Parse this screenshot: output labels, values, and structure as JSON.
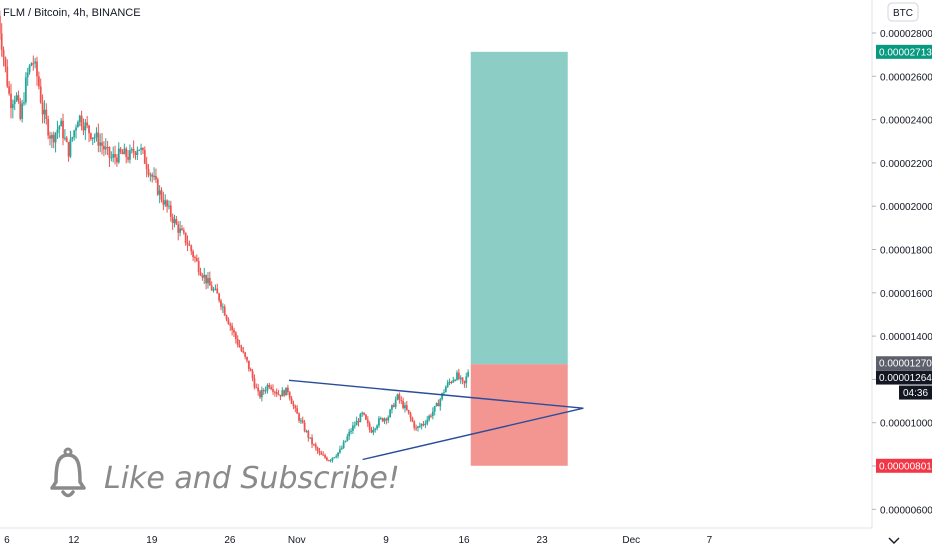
{
  "header": {
    "symbol_line": "FLM / Bitcoin, 4h, BINANCE",
    "currency": "BTC"
  },
  "overlay": {
    "call_to_action": "Like and Subscribe!",
    "icon": "bell-icon"
  },
  "colors": {
    "up": "#26a69a",
    "down": "#ef5350",
    "target_zone": "#80c8bf",
    "stop_zone": "#f28b86",
    "trendline": "#2a4d9b",
    "target_badge": "#089981",
    "stop_badge": "#f23645",
    "entry_badge": "#5d606b",
    "current_badge": "#131722"
  },
  "price_badges": {
    "target": "0.00002713",
    "entry": "0.00001270",
    "current": "0.00001264",
    "countdown": "04:36",
    "stop": "0.00000801"
  },
  "chart_data": {
    "type": "candlestick",
    "title": "FLM / Bitcoin, 4h, BINANCE",
    "y_ticks": [
      "0.00002800",
      "0.00002600",
      "0.00002400",
      "0.00002200",
      "0.00002000",
      "0.00001800",
      "0.00001600",
      "0.00001400",
      "0.00001200",
      "0.00001000",
      "0.00000800",
      "0.00000600"
    ],
    "y_tick_values": [
      2800,
      2600,
      2400,
      2200,
      2000,
      1800,
      1600,
      1400,
      1200,
      1000,
      800,
      600
    ],
    "y_unit_scale": 1e-08,
    "x_ticks": [
      "6",
      "12",
      "19",
      "26",
      "Nov",
      "9",
      "16",
      "23",
      "Dec",
      "7"
    ],
    "x_tick_days": [
      6,
      12,
      19,
      26,
      32,
      40,
      47,
      54,
      62,
      69
    ],
    "x_axis_note": "day index counted from Oct 1",
    "path_days": [
      5.2,
      5.9,
      6.3,
      6.8,
      7.2,
      7.8,
      8.3,
      8.8,
      9.2,
      10.0,
      10.8,
      11.5,
      12.4,
      13.3,
      14.3,
      15.3,
      16.3,
      17.0,
      17.8,
      18.4,
      19.0,
      19.6,
      20.4,
      21.2,
      22.2,
      23.2,
      24.2,
      25.0,
      25.8,
      26.6,
      27.6,
      28.6,
      29.5,
      30.4,
      31.2,
      31.8,
      32.4,
      33.3,
      34.1,
      34.9,
      35.9,
      36.9,
      37.9,
      38.6,
      39.4,
      40.2,
      41.0,
      41.8,
      42.7,
      43.6,
      44.6,
      45.4,
      46.3,
      47.0,
      47.5
    ],
    "path_values": [
      2880,
      2620,
      2480,
      2520,
      2400,
      2600,
      2680,
      2580,
      2440,
      2310,
      2380,
      2250,
      2420,
      2350,
      2300,
      2220,
      2240,
      2230,
      2280,
      2210,
      2140,
      2070,
      1990,
      1910,
      1830,
      1720,
      1630,
      1580,
      1480,
      1380,
      1270,
      1120,
      1180,
      1130,
      1150,
      1060,
      1000,
      910,
      850,
      830,
      870,
      970,
      1040,
      960,
      1010,
      1030,
      1120,
      1060,
      970,
      1010,
      1080,
      1170,
      1220,
      1170,
      1264
    ],
    "annotations": {
      "long_position": {
        "entry": 1270,
        "target": 2713,
        "stop": 801,
        "start_day": 47.6,
        "end_day": 56.3
      },
      "triangle_upper": {
        "from": [
          31.3,
          1196
        ],
        "to": [
          57.7,
          1067
        ]
      },
      "triangle_lower": {
        "from": [
          37.9,
          830
        ],
        "to": [
          57.7,
          1067
        ]
      }
    }
  }
}
